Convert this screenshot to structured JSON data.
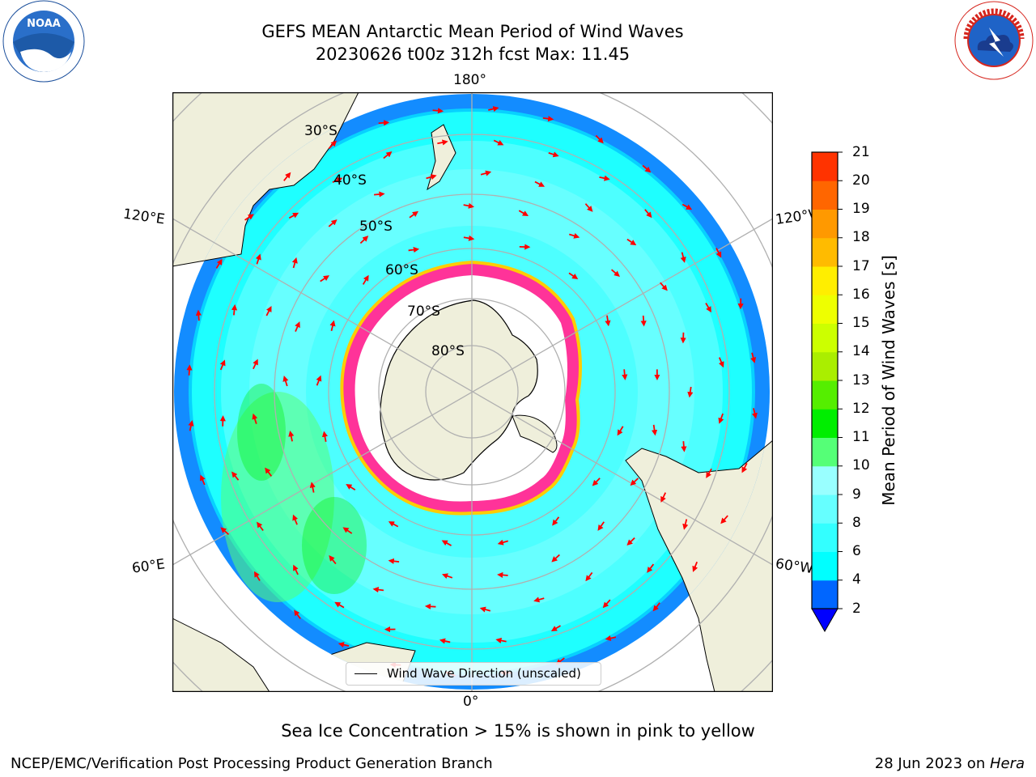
{
  "title": {
    "line1": "GEFS MEAN Antarctic Mean Period of Wind Waves",
    "line2": "20230626 t00z 312h fcst   Max: 11.45"
  },
  "logos": {
    "left": {
      "icon": "noaa-logo",
      "text": "NOAA"
    },
    "right": {
      "icon": "national-weather-service-logo",
      "text": "NATIONAL WEATHER SERVICE"
    }
  },
  "map": {
    "projection": "south-polar-stereographic",
    "longitude_labels": {
      "top": "180°",
      "bottom": "0°",
      "upper_left": "120°E",
      "upper_right": "120°W",
      "lower_left": "60°E",
      "lower_right": "60°W"
    },
    "latitude_labels": [
      "30°S",
      "40°S",
      "50°S",
      "60°S",
      "70°S",
      "80°S"
    ],
    "colors": {
      "land": "#efefdb",
      "ocean_base": "#4dffff",
      "sea_ice": "#ff3399",
      "ice_edge_yellow": "#ffcc00",
      "arrow": "#ff0000",
      "grid": "#b0b0b0"
    }
  },
  "legend": {
    "label": "Wind Wave Direction (unscaled)"
  },
  "colorbar": {
    "label": "Mean Period of Wind Waves [s]",
    "ticks": [
      "2",
      "4",
      "6",
      "8",
      "9",
      "10",
      "11",
      "12",
      "13",
      "14",
      "15",
      "16",
      "17",
      "18",
      "19",
      "20",
      "21"
    ],
    "colors": [
      "#0066ff",
      "#00ffff",
      "#33ffff",
      "#66ffff",
      "#99ffff",
      "#55ff77",
      "#00ee00",
      "#55ee00",
      "#aaee00",
      "#ccff00",
      "#eeff00",
      "#ffee00",
      "#ffbb00",
      "#ff9900",
      "#ff6600",
      "#ff3300",
      "#ff0000"
    ],
    "extend_below_color": "#0000ff"
  },
  "subtitle": "Sea Ice Concentration > 15% is shown in pink to yellow",
  "footer": {
    "left": "NCEP/EMC/Verification Post Processing Product Generation Branch",
    "right_date": "28 Jun 2023 on ",
    "right_machine": "Hera"
  }
}
